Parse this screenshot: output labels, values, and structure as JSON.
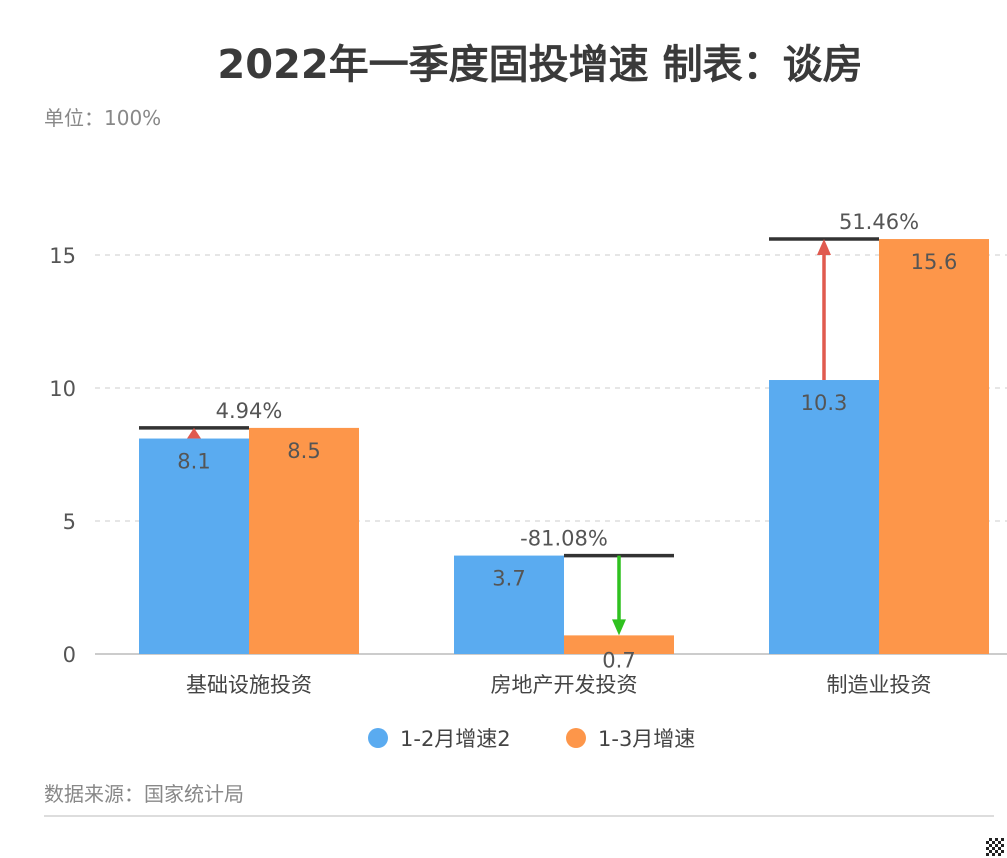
{
  "header": {
    "title": "2022年一季度固投增速 制表：谈房",
    "unit": "单位：100%"
  },
  "footer": {
    "source": "数据来源：国家统计局"
  },
  "chart_data": {
    "type": "bar",
    "categories": [
      "基础设施投资",
      "房地产开发投资",
      "制造业投资"
    ],
    "series": [
      {
        "name": "1-2月增速2",
        "values": [
          8.1,
          3.7,
          10.3
        ],
        "color": "#5aabf0"
      },
      {
        "name": "1-3月增速",
        "values": [
          8.5,
          0.7,
          15.6
        ],
        "color": "#fd964a"
      }
    ],
    "change_labels": [
      "4.94%",
      "-81.08%",
      "51.46%"
    ],
    "up_color": "#e05a4f",
    "down_color": "#2fc11f",
    "ylim": [
      0,
      15
    ],
    "yticks": [
      0,
      5,
      10,
      15
    ],
    "grid": true,
    "legend": "bottom"
  }
}
